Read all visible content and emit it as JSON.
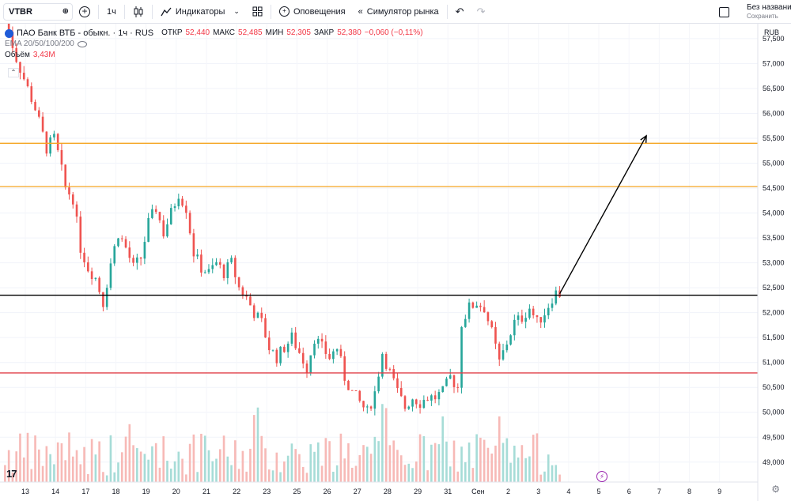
{
  "toolbar": {
    "symbol": "VTBR",
    "interval": "1ч",
    "indicators_label": "Индикаторы",
    "alerts_label": "Оповещения",
    "replay_label": "Симулятор рынка",
    "layout_name": "Без названия",
    "layout_save": "Сохранить",
    "icons": [
      "plus-icon",
      "candles-icon",
      "indicators-icon",
      "layouts-icon",
      "alarm-icon",
      "replay-icon",
      "undo-icon",
      "redo-icon"
    ]
  },
  "legend": {
    "title": "ПАО Банк ВТБ - обыкн. · 1ч · RUS",
    "open_label": "ОТКР",
    "open": "52,440",
    "high_label": "МАКС",
    "high": "52,485",
    "low_label": "МИН",
    "low": "52,305",
    "close_label": "ЗАКР",
    "close": "52,380",
    "change": "−0,060 (−0,11%)",
    "ema": "EMA 20/50/100/200",
    "volume_label": "Объём",
    "volume": "3,43M"
  },
  "chart_data": {
    "type": "candlestick",
    "currency": "RUB",
    "y_ticks": [
      "57,500",
      "57,000",
      "56,500",
      "56,000",
      "55,500",
      "55,000",
      "54,500",
      "54,000",
      "53,500",
      "53,000",
      "52,500",
      "52,000",
      "51,500",
      "51,000",
      "50,500",
      "50,000",
      "49,500",
      "49,000"
    ],
    "ylim": [
      48600,
      57800
    ],
    "x_ticks": [
      "13",
      "14",
      "17",
      "18",
      "19",
      "20",
      "21",
      "22",
      "23",
      "25",
      "26",
      "27",
      "28",
      "29",
      "31",
      "Сен",
      "2",
      "3",
      "4",
      "5",
      "6",
      "7",
      "8",
      "9"
    ],
    "close_path": [
      [
        0,
        57900
      ],
      [
        3,
        57100
      ],
      [
        5,
        56700
      ],
      [
        8,
        56100
      ],
      [
        11,
        55300
      ],
      [
        13,
        55500
      ],
      [
        14,
        55200
      ],
      [
        16,
        54500
      ],
      [
        18,
        54300
      ],
      [
        20,
        53300
      ],
      [
        22,
        52900
      ],
      [
        24,
        52700
      ],
      [
        26,
        52200
      ],
      [
        28,
        53000
      ],
      [
        30,
        53600
      ],
      [
        32,
        53300
      ],
      [
        34,
        52900
      ],
      [
        36,
        53100
      ],
      [
        38,
        53800
      ],
      [
        40,
        54100
      ],
      [
        42,
        53600
      ],
      [
        44,
        54000
      ],
      [
        46,
        54400
      ],
      [
        48,
        54100
      ],
      [
        50,
        53200
      ],
      [
        52,
        52900
      ],
      [
        54,
        52800
      ],
      [
        56,
        53000
      ],
      [
        58,
        52800
      ],
      [
        60,
        53000
      ],
      [
        62,
        52500
      ],
      [
        64,
        52300
      ],
      [
        66,
        52000
      ],
      [
        68,
        51800
      ],
      [
        70,
        51300
      ],
      [
        72,
        51100
      ],
      [
        74,
        51300
      ],
      [
        76,
        51500
      ],
      [
        78,
        51200
      ],
      [
        80,
        50900
      ],
      [
        82,
        51500
      ],
      [
        84,
        51300
      ],
      [
        86,
        51100
      ],
      [
        88,
        51300
      ],
      [
        90,
        50700
      ],
      [
        92,
        50400
      ],
      [
        94,
        50200
      ],
      [
        96,
        50000
      ],
      [
        98,
        50400
      ],
      [
        100,
        51200
      ],
      [
        102,
        50800
      ],
      [
        104,
        50400
      ],
      [
        106,
        50100
      ],
      [
        108,
        50300
      ],
      [
        110,
        50200
      ],
      [
        112,
        50300
      ],
      [
        114,
        50300
      ],
      [
        116,
        50400
      ],
      [
        118,
        50700
      ],
      [
        120,
        50500
      ],
      [
        121,
        51800
      ],
      [
        123,
        52100
      ],
      [
        125,
        52200
      ],
      [
        127,
        52100
      ],
      [
        129,
        51600
      ],
      [
        131,
        51000
      ],
      [
        133,
        51400
      ],
      [
        135,
        51800
      ],
      [
        137,
        51900
      ],
      [
        139,
        52100
      ],
      [
        141,
        51800
      ],
      [
        143,
        52000
      ],
      [
        145,
        52300
      ],
      [
        146,
        52400
      ],
      [
        147,
        52380
      ]
    ],
    "volume_note": "Volume histogram along bottom, red/green bars",
    "horizontal_levels": [
      {
        "value": 55400,
        "label": "55,400",
        "color": "#f5a623"
      },
      {
        "value": 54530,
        "label": "54,530",
        "color": "#f5a623"
      },
      {
        "value": 52350,
        "label": "52,350",
        "color": "#000000"
      },
      {
        "value": 50790,
        "label": "50,790",
        "color": "#e0414a"
      }
    ],
    "current_price": {
      "label": "52,380",
      "color": "#f23645"
    },
    "projection_arrow": {
      "from": [
        147,
        52380
      ],
      "to": [
        162,
        55550
      ],
      "color": "#000000"
    },
    "colors": {
      "up": "#26a69a",
      "down": "#ef5350",
      "vol_up": "#a6dcd7",
      "vol_down": "#f7b9b6"
    }
  }
}
